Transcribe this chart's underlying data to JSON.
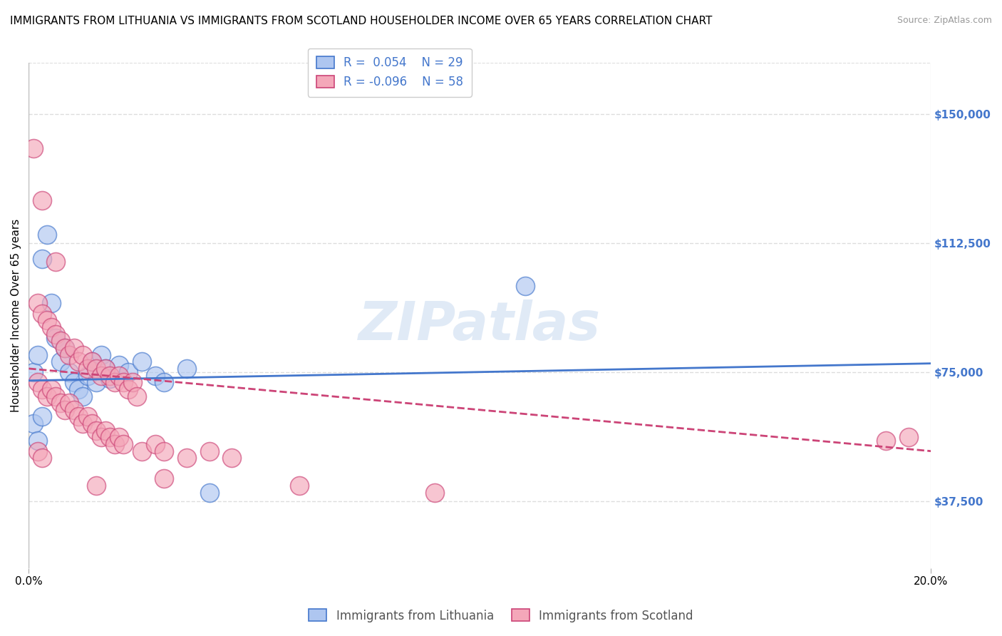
{
  "title": "IMMIGRANTS FROM LITHUANIA VS IMMIGRANTS FROM SCOTLAND HOUSEHOLDER INCOME OVER 65 YEARS CORRELATION CHART",
  "source": "Source: ZipAtlas.com",
  "ylabel": "Householder Income Over 65 years",
  "xlabel_ticks": [
    "0.0%",
    "20.0%"
  ],
  "ytick_labels": [
    "$37,500",
    "$75,000",
    "$112,500",
    "$150,000"
  ],
  "ytick_values": [
    37500,
    75000,
    112500,
    150000
  ],
  "xlim": [
    0.0,
    0.2
  ],
  "ylim": [
    18000,
    165000
  ],
  "watermark": "ZIPatlas",
  "color_lithuania": "#aec6f0",
  "color_scotland": "#f4a7b9",
  "line_color_lithuania": "#4477cc",
  "line_color_scotland": "#cc4477",
  "scatter_lithuania": [
    [
      0.001,
      75000
    ],
    [
      0.002,
      80000
    ],
    [
      0.003,
      108000
    ],
    [
      0.004,
      115000
    ],
    [
      0.005,
      95000
    ],
    [
      0.006,
      85000
    ],
    [
      0.007,
      78000
    ],
    [
      0.008,
      82000
    ],
    [
      0.009,
      75000
    ],
    [
      0.01,
      72000
    ],
    [
      0.011,
      70000
    ],
    [
      0.012,
      68000
    ],
    [
      0.013,
      74000
    ],
    [
      0.014,
      78000
    ],
    [
      0.015,
      72000
    ],
    [
      0.016,
      80000
    ],
    [
      0.017,
      76000
    ],
    [
      0.018,
      73000
    ],
    [
      0.02,
      77000
    ],
    [
      0.022,
      75000
    ],
    [
      0.025,
      78000
    ],
    [
      0.028,
      74000
    ],
    [
      0.03,
      72000
    ],
    [
      0.035,
      76000
    ],
    [
      0.001,
      60000
    ],
    [
      0.002,
      55000
    ],
    [
      0.003,
      62000
    ],
    [
      0.11,
      100000
    ],
    [
      0.04,
      40000
    ]
  ],
  "scatter_scotland": [
    [
      0.001,
      140000
    ],
    [
      0.003,
      125000
    ],
    [
      0.006,
      107000
    ],
    [
      0.002,
      95000
    ],
    [
      0.003,
      92000
    ],
    [
      0.004,
      90000
    ],
    [
      0.005,
      88000
    ],
    [
      0.006,
      86000
    ],
    [
      0.007,
      84000
    ],
    [
      0.008,
      82000
    ],
    [
      0.009,
      80000
    ],
    [
      0.01,
      82000
    ],
    [
      0.011,
      78000
    ],
    [
      0.012,
      80000
    ],
    [
      0.013,
      76000
    ],
    [
      0.014,
      78000
    ],
    [
      0.015,
      76000
    ],
    [
      0.016,
      74000
    ],
    [
      0.017,
      76000
    ],
    [
      0.018,
      74000
    ],
    [
      0.019,
      72000
    ],
    [
      0.02,
      74000
    ],
    [
      0.021,
      72000
    ],
    [
      0.022,
      70000
    ],
    [
      0.023,
      72000
    ],
    [
      0.024,
      68000
    ],
    [
      0.002,
      72000
    ],
    [
      0.003,
      70000
    ],
    [
      0.004,
      68000
    ],
    [
      0.005,
      70000
    ],
    [
      0.006,
      68000
    ],
    [
      0.007,
      66000
    ],
    [
      0.008,
      64000
    ],
    [
      0.009,
      66000
    ],
    [
      0.01,
      64000
    ],
    [
      0.011,
      62000
    ],
    [
      0.012,
      60000
    ],
    [
      0.013,
      62000
    ],
    [
      0.014,
      60000
    ],
    [
      0.015,
      58000
    ],
    [
      0.016,
      56000
    ],
    [
      0.017,
      58000
    ],
    [
      0.018,
      56000
    ],
    [
      0.019,
      54000
    ],
    [
      0.02,
      56000
    ],
    [
      0.021,
      54000
    ],
    [
      0.025,
      52000
    ],
    [
      0.028,
      54000
    ],
    [
      0.03,
      52000
    ],
    [
      0.035,
      50000
    ],
    [
      0.04,
      52000
    ],
    [
      0.045,
      50000
    ],
    [
      0.19,
      55000
    ],
    [
      0.195,
      56000
    ],
    [
      0.015,
      42000
    ],
    [
      0.03,
      44000
    ],
    [
      0.06,
      42000
    ],
    [
      0.09,
      40000
    ],
    [
      0.002,
      52000
    ],
    [
      0.003,
      50000
    ]
  ],
  "lith_line": [
    0.0,
    0.2,
    72500,
    77500
  ],
  "scot_line": [
    0.0,
    0.2,
    76000,
    52000
  ],
  "background_color": "#ffffff",
  "grid_color": "#dddddd",
  "title_fontsize": 11,
  "axis_label_fontsize": 11,
  "tick_fontsize": 11,
  "right_tick_color": "#4477cc"
}
